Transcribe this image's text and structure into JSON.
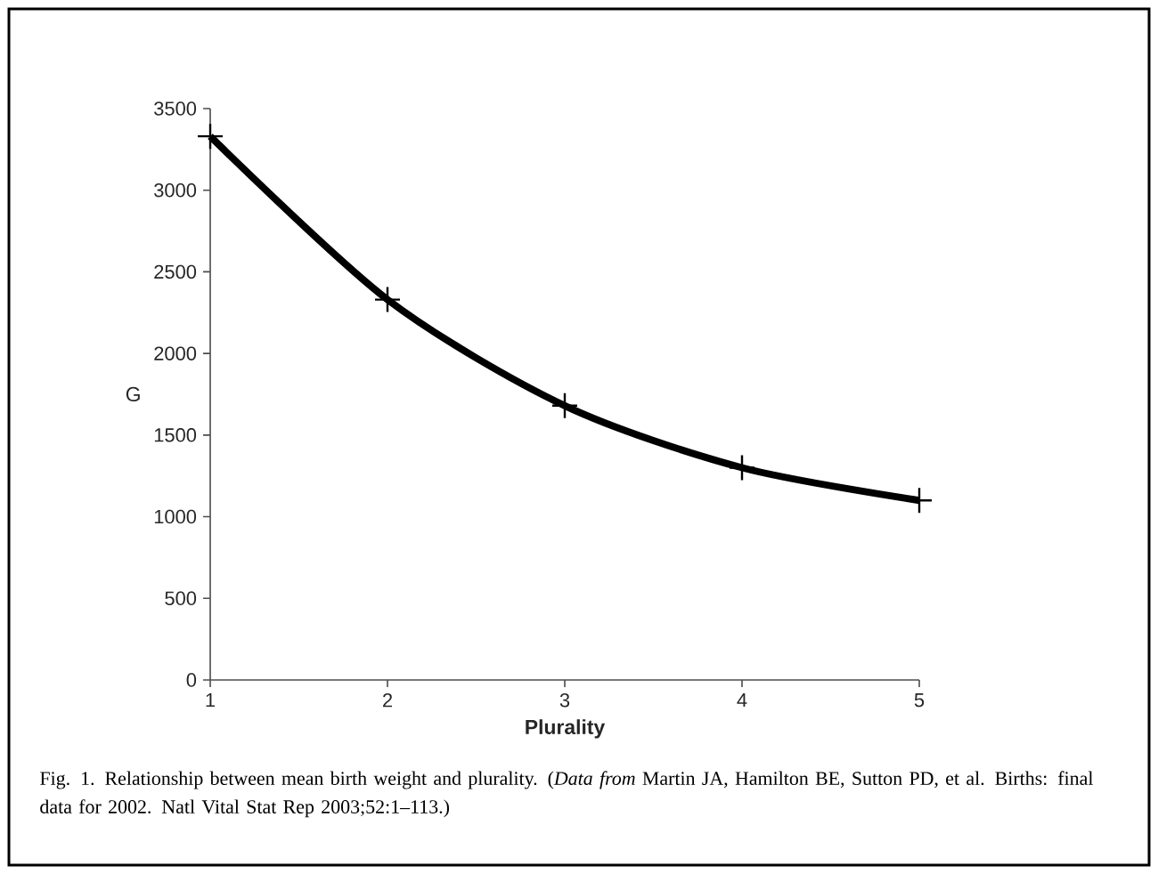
{
  "chart_data": {
    "type": "line",
    "xlabel": "Plurality",
    "ylabel": "G",
    "x": [
      1,
      2,
      3,
      4,
      5
    ],
    "series": [
      {
        "color": "#000000",
        "values": [
          3330,
          2330,
          1680,
          1300,
          1100
        ]
      }
    ],
    "xlim": [
      1,
      5
    ],
    "xticks": [
      1,
      2,
      3,
      4,
      5
    ],
    "ylim": [
      0,
      3500
    ],
    "yticks": [
      0,
      500,
      1000,
      1500,
      2000,
      2500,
      3000,
      3500
    ],
    "marker": "cross",
    "line_style": "solid",
    "annotations": [
      "Fig. 1. Relationship between mean birth weight and plurality. (*Data from* Martin JA, Hamilton BE, Sutton PD, et al. Births: final data for 2002. Natl Vital Stat Rep 2003;52:1–113.)"
    ]
  }
}
